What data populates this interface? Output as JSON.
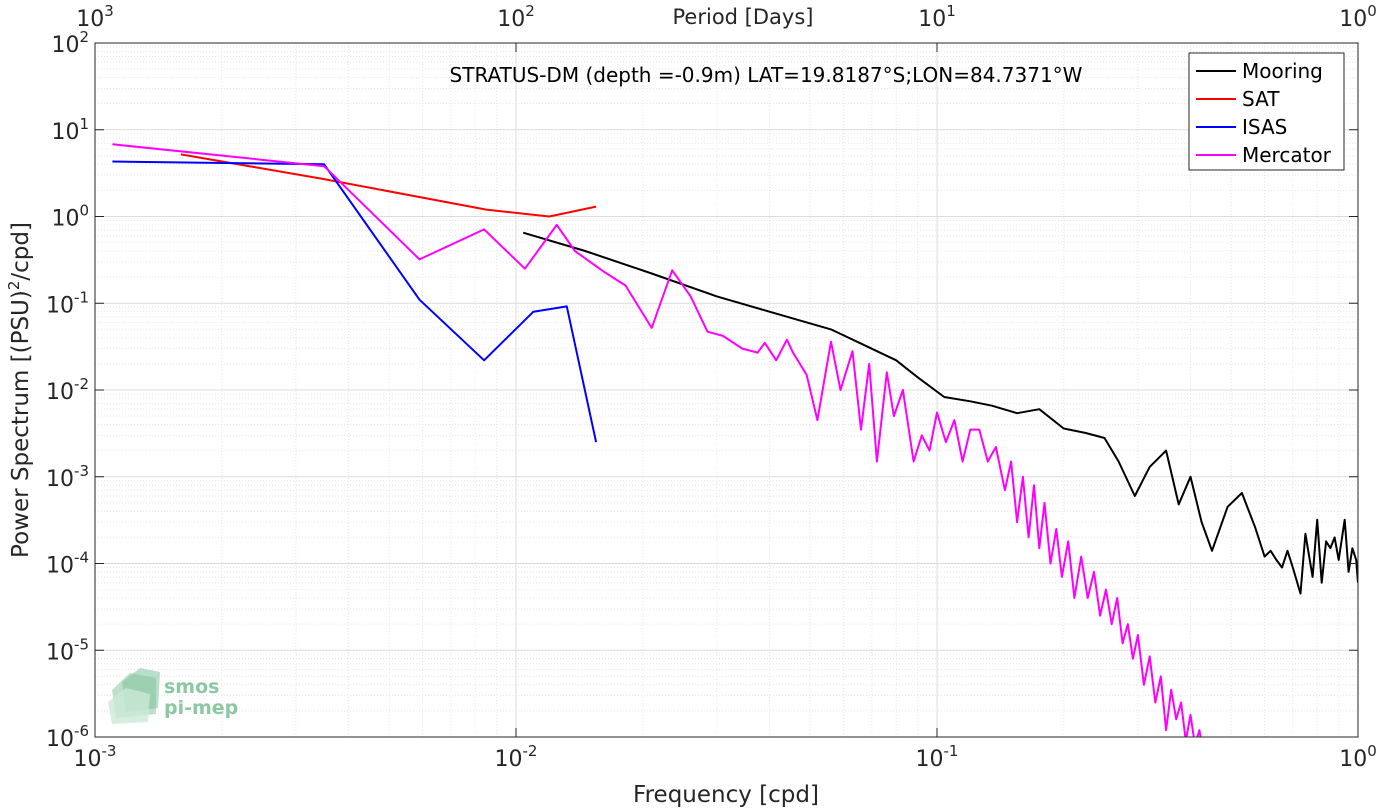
{
  "chart_data": {
    "type": "line",
    "title": "STRATUS-DM (depth =-0.9m) LAT=19.8187°S;LON=84.7371°W",
    "xlabel": "Frequency [cpd]",
    "ylabel": "Power Spectrum [(PSU)",
    "ylabel_sup": "2",
    "ylabel_tail": "/cpd]",
    "top_xlabel": "Period [Days]",
    "x_scale": "log",
    "y_scale": "log",
    "xlim": [
      0.001,
      1
    ],
    "ylim": [
      1e-06,
      100
    ],
    "grid": true,
    "legend_position": "top-right",
    "x_ticks": [
      {
        "value": 0.001,
        "base": "10",
        "exp": "-3"
      },
      {
        "value": 0.01,
        "base": "10",
        "exp": "-2"
      },
      {
        "value": 0.1,
        "base": "10",
        "exp": "-1"
      },
      {
        "value": 1,
        "base": "10",
        "exp": "0"
      }
    ],
    "top_ticks": [
      {
        "value": 0.001,
        "base": "10",
        "exp": "3"
      },
      {
        "value": 0.01,
        "base": "10",
        "exp": "2"
      },
      {
        "value": 0.1,
        "base": "10",
        "exp": "1"
      },
      {
        "value": 1,
        "base": "10",
        "exp": "0"
      }
    ],
    "y_ticks": [
      {
        "value": 100,
        "base": "10",
        "exp": "2"
      },
      {
        "value": 10,
        "base": "10",
        "exp": "1"
      },
      {
        "value": 1,
        "base": "10",
        "exp": "0"
      },
      {
        "value": 0.1,
        "base": "10",
        "exp": "-1"
      },
      {
        "value": 0.01,
        "base": "10",
        "exp": "-2"
      },
      {
        "value": 0.001,
        "base": "10",
        "exp": "-3"
      },
      {
        "value": 0.0001,
        "base": "10",
        "exp": "-4"
      },
      {
        "value": 1e-05,
        "base": "10",
        "exp": "-5"
      },
      {
        "value": 1e-06,
        "base": "10",
        "exp": "-6"
      }
    ],
    "series": [
      {
        "name": "Mooring",
        "color": "#000000",
        "x": [
          0.0104,
          0.0146,
          0.021,
          0.03,
          0.04,
          0.056,
          0.068,
          0.08,
          0.09,
          0.104,
          0.12,
          0.135,
          0.155,
          0.175,
          0.2,
          0.225,
          0.25,
          0.27,
          0.295,
          0.32,
          0.35,
          0.375,
          0.4,
          0.425,
          0.45,
          0.49,
          0.53,
          0.57,
          0.6,
          0.62,
          0.64,
          0.66,
          0.68,
          0.7,
          0.73,
          0.75,
          0.78,
          0.8,
          0.82,
          0.84,
          0.86,
          0.88,
          0.9,
          0.93,
          0.95,
          0.97,
          0.99,
          1.0
        ],
        "y": [
          0.65,
          0.4,
          0.22,
          0.12,
          0.08,
          0.05,
          0.032,
          0.022,
          0.014,
          0.0083,
          0.0074,
          0.0066,
          0.0054,
          0.006,
          0.0036,
          0.0032,
          0.0028,
          0.0015,
          0.0006,
          0.0013,
          0.002,
          0.00048,
          0.001,
          0.0003,
          0.00014,
          0.00045,
          0.00065,
          0.00026,
          0.00012,
          0.00014,
          0.00011,
          9e-05,
          0.00014,
          9e-05,
          4.5e-05,
          0.00022,
          7e-05,
          0.00032,
          6e-05,
          0.00018,
          0.00015,
          0.0002,
          0.00011,
          0.00032,
          8e-05,
          0.00015,
          0.00011,
          6e-05
        ]
      },
      {
        "name": "SAT",
        "color": "#ff0000",
        "x": [
          0.0016,
          0.0035,
          0.0085,
          0.012,
          0.0155
        ],
        "y": [
          5.2,
          2.7,
          1.2,
          1.0,
          1.3
        ]
      },
      {
        "name": "ISAS",
        "color": "#0000ff",
        "x": [
          0.0011,
          0.0035,
          0.0059,
          0.0084,
          0.011,
          0.0132,
          0.0155
        ],
        "y": [
          4.3,
          4.0,
          0.11,
          0.022,
          0.08,
          0.092,
          0.0025
        ]
      },
      {
        "name": "Mercator",
        "color": "#ff00ff",
        "x": [
          0.0011,
          0.0035,
          0.0059,
          0.0084,
          0.0105,
          0.0125,
          0.0138,
          0.0162,
          0.0182,
          0.021,
          0.0235,
          0.026,
          0.0285,
          0.031,
          0.0345,
          0.0375,
          0.039,
          0.0415,
          0.044,
          0.0455,
          0.049,
          0.052,
          0.056,
          0.059,
          0.063,
          0.066,
          0.069,
          0.072,
          0.076,
          0.079,
          0.083,
          0.088,
          0.092,
          0.096,
          0.1,
          0.105,
          0.11,
          0.115,
          0.12,
          0.126,
          0.132,
          0.138,
          0.145,
          0.15,
          0.155,
          0.16,
          0.165,
          0.17,
          0.175,
          0.18,
          0.186,
          0.192,
          0.198,
          0.205,
          0.212,
          0.22,
          0.228,
          0.236,
          0.244,
          0.252,
          0.26,
          0.268,
          0.276,
          0.284,
          0.292,
          0.3,
          0.31,
          0.32,
          0.33,
          0.34,
          0.35,
          0.36,
          0.37,
          0.38,
          0.39,
          0.4,
          0.41,
          0.42,
          0.43
        ],
        "y": [
          6.8,
          3.8,
          0.32,
          0.71,
          0.25,
          0.8,
          0.4,
          0.23,
          0.16,
          0.052,
          0.24,
          0.12,
          0.047,
          0.042,
          0.03,
          0.027,
          0.035,
          0.022,
          0.038,
          0.027,
          0.015,
          0.0045,
          0.036,
          0.01,
          0.028,
          0.0035,
          0.02,
          0.0015,
          0.016,
          0.005,
          0.01,
          0.0015,
          0.003,
          0.002,
          0.0055,
          0.0025,
          0.0045,
          0.0015,
          0.0035,
          0.0035,
          0.0015,
          0.0022,
          0.0007,
          0.0015,
          0.0003,
          0.001,
          0.0002,
          0.0008,
          0.00015,
          0.0005,
          0.0001,
          0.00025,
          7e-05,
          0.00018,
          4e-05,
          0.00012,
          4e-05,
          8e-05,
          2.5e-05,
          5e-05,
          2e-05,
          4e-05,
          1.2e-05,
          2e-05,
          8e-06,
          1.5e-05,
          4e-06,
          8.5e-06,
          2.5e-06,
          5e-06,
          1.2e-06,
          3.5e-06,
          1.6e-06,
          2.5e-06,
          9e-07,
          1.8e-06,
          8e-07,
          1.2e-06,
          6e-07
        ]
      }
    ],
    "legend": [
      "Mooring",
      "SAT",
      "ISAS",
      "Mercator"
    ],
    "watermark": {
      "line1": "smos",
      "line2": "pi-mep",
      "color": "#8cc8a4"
    }
  }
}
